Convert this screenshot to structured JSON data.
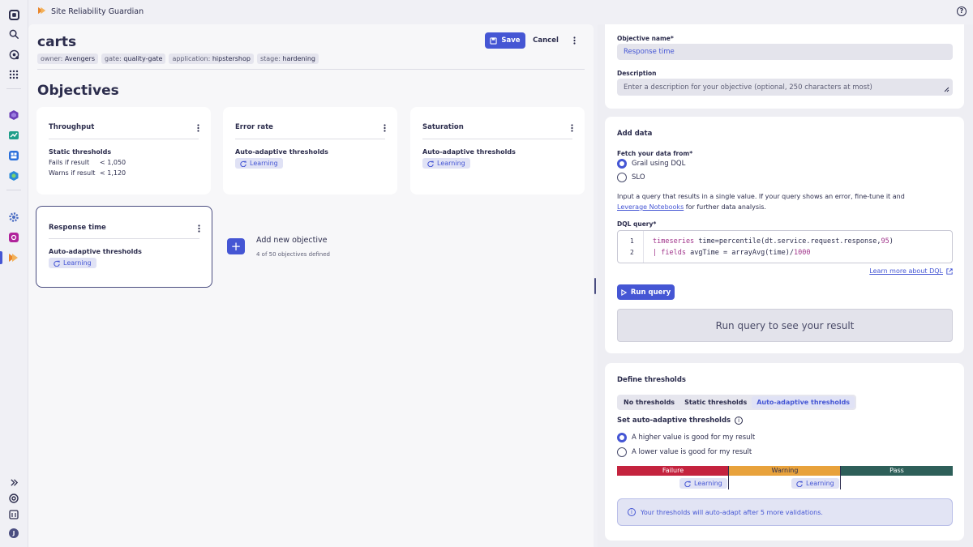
{
  "app": {
    "title": "Site Reliability Guardian"
  },
  "nav": {
    "icons": [
      "dynatrace-logo-icon",
      "search-icon",
      "ai-icon",
      "apps-grid-icon",
      "kubernetes-icon",
      "infrastructure-icon",
      "dashboards-icon",
      "services-icon",
      "settings-icon",
      "workflows-icon",
      "srg-app-icon"
    ],
    "bottom": [
      "expand-icon",
      "support-icon",
      "notifications-icon",
      "user-avatar"
    ],
    "user_initial": "J"
  },
  "guardian": {
    "name": "carts",
    "tags": [
      {
        "key": "owner",
        "value": "Avengers"
      },
      {
        "key": "gate",
        "value": "quality-gate"
      },
      {
        "key": "application",
        "value": "hipstershop"
      },
      {
        "key": "stage",
        "value": "hardening"
      }
    ],
    "save_label": "Save",
    "cancel_label": "Cancel"
  },
  "objectives": {
    "heading": "Objectives",
    "cards": [
      {
        "name": "Throughput",
        "threshold_type": "Static thresholds",
        "fail_label": "Fails if result",
        "fail_value": "< 1,050",
        "warn_label": "Warns if result",
        "warn_value": "< 1,120"
      },
      {
        "name": "Error rate",
        "threshold_type": "Auto-adaptive thresholds",
        "status": "Learning"
      },
      {
        "name": "Saturation",
        "threshold_type": "Auto-adaptive thresholds",
        "status": "Learning"
      },
      {
        "name": "Response time",
        "threshold_type": "Auto-adaptive thresholds",
        "status": "Learning"
      }
    ],
    "add_label": "Add new objective",
    "count_text": "4 of 50 objectives defined"
  },
  "editor": {
    "name_label": "Objective name*",
    "name_value": "Response time",
    "desc_label": "Description",
    "desc_placeholder": "Enter a description for your objective (optional, 250 characters at most)",
    "add_data": {
      "title": "Add data",
      "fetch_label": "Fetch your data from*",
      "options": [
        "Grail using DQL",
        "SLO"
      ],
      "help_line1": "Input a query that results in a single value. If your query shows an error, fine-tune it and",
      "help_link": "Leverage Notebooks",
      "help_line2": " for further data analysis.",
      "dql_label": "DQL query*",
      "line_numbers": [
        "1",
        "2"
      ],
      "learn_more": "Learn more about DQL",
      "run_label": "Run query",
      "result_placeholder": "Run query to see your result"
    },
    "thresholds": {
      "title": "Define thresholds",
      "tabs": [
        "No thresholds",
        "Static thresholds",
        "Auto-adaptive thresholds"
      ],
      "active_tab": "Auto-adaptive thresholds",
      "sub_title": "Set auto-adaptive thresholds",
      "options": [
        "A higher value is good for my result",
        "A lower value is good for my result"
      ],
      "bands": [
        {
          "label": "Failure",
          "color": "#c4233e"
        },
        {
          "label": "Warning",
          "color": "#e8a23c"
        },
        {
          "label": "Pass",
          "color": "#2e5f59"
        }
      ],
      "learning_label": "Learning",
      "info": "Your thresholds will auto-adapt after 5 more validations."
    }
  },
  "colors": {
    "accent": "#4556d4",
    "text": "#2c2d4d",
    "learning_bg": "#e0e2f5"
  }
}
